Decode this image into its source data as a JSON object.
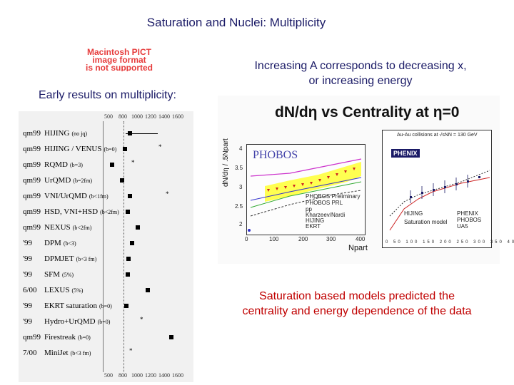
{
  "slide": {
    "title": "Saturation and Nuclei: Multiplicity",
    "pict_placeholder": [
      "Macintosh PICT",
      "image format",
      "is not supported"
    ],
    "early_results": "Early results on multiplicity:",
    "note_top": "Increasing A corresponds to decreasing x, or increasing energy",
    "note_bottom": "Saturation based models predicted the centrality and energy dependence of the data"
  },
  "left_figure": {
    "axis_top": [
      "500",
      "800",
      "1000",
      "1200",
      "1400",
      "1600"
    ],
    "axis_bottom": [
      "500",
      "800",
      "1000",
      "1200",
      "1400",
      "1600"
    ],
    "rows": [
      {
        "year": "qm99",
        "model": "HIJING",
        "sub": "(no jq)"
      },
      {
        "year": "qm99",
        "model": "HIJING / VENUS",
        "sub": "(b=0)"
      },
      {
        "year": "qm99",
        "model": "RQMD",
        "sub": "(b=3)"
      },
      {
        "year": "qm99",
        "model": "UrQMD",
        "sub": "(b=2fm)"
      },
      {
        "year": "qm99",
        "model": "VNI/UrQMD",
        "sub": "(b<1fm)"
      },
      {
        "year": "qm99",
        "model": "HSD, VNI+HSD",
        "sub": "(b<2fm)"
      },
      {
        "year": "qm99",
        "model": "NEXUS",
        "sub": "(b<2fm)"
      },
      {
        "year": "'99",
        "model": "DPM",
        "sub": "(b<3)"
      },
      {
        "year": "'99",
        "model": "DPMJET",
        "sub": "(b<3 fm)"
      },
      {
        "year": "'99",
        "model": "SFM",
        "sub": "(5%)"
      },
      {
        "year": "6/00",
        "model": "LEXUS",
        "sub": "(5%)"
      },
      {
        "year": "'99",
        "model": "EKRT saturation",
        "sub": "(b=0)"
      },
      {
        "year": "'99",
        "model": "Hydro+UrQMD",
        "sub": "(b=0)"
      },
      {
        "year": "qm99",
        "model": "Firestreak",
        "sub": "(b=0)"
      },
      {
        "year": "7/00",
        "model": "MiniJet",
        "sub": "(b<3 fm)"
      }
    ]
  },
  "right_figure": {
    "title": "dN/dη  vs Centrality at η=0",
    "ylabel": "dN/dη / .5Npart",
    "xlabel": "Npart",
    "phobos_logo": "PHOBOS",
    "y_ticks": [
      "4",
      "3.5",
      "3",
      "2.5",
      "2"
    ],
    "x_ticks": [
      "0",
      "100",
      "200",
      "300",
      "400"
    ],
    "legend": [
      "PHOBOS Preliminary",
      "PHOBOS PRL",
      "pp",
      "Kharzeev/Nardi",
      "HIJING",
      "EKRT"
    ],
    "phenix_header": "Au-Au collisions at √sNN = 130 GeV",
    "phenix_logo": "PHENIX",
    "phenix_legend": [
      "HIJING",
      "Saturation model",
      "PHENIX",
      "PHOBOS",
      "UA5"
    ],
    "phenix_x_ticks": [
      "0",
      "50",
      "100",
      "150",
      "200",
      "250",
      "300",
      "350",
      "400"
    ],
    "colors": {
      "title_blue": "#1a1a66",
      "red_note": "#c00000",
      "band_yellow": "#ffff33",
      "phobos_red": "#cc2222"
    }
  }
}
